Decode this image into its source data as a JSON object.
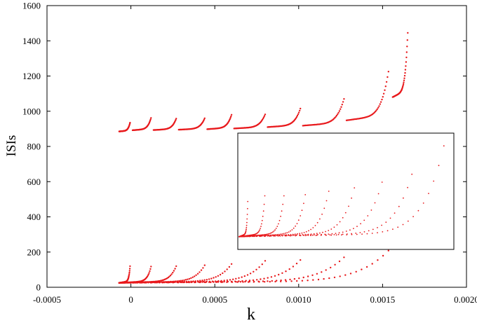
{
  "chart_data": {
    "type": "scatter",
    "title": "",
    "xlabel": "k",
    "ylabel": "ISIs",
    "xlim": [
      -0.0005,
      0.002
    ],
    "ylim": [
      0,
      1600
    ],
    "x_ticks": [
      "-0.0005",
      "0",
      "0.0005",
      "0.0010",
      "0.0015",
      "0.0020"
    ],
    "x_tick_values": [
      -0.0005,
      0,
      0.0005,
      0.001,
      0.0015,
      0.002
    ],
    "y_ticks": [
      "0",
      "200",
      "400",
      "600",
      "800",
      "1000",
      "1200",
      "1400",
      "1600"
    ],
    "y_tick_values": [
      0,
      200,
      400,
      600,
      800,
      1000,
      1200,
      1400,
      1600
    ],
    "grid": false,
    "marker_color": "#e8191c",
    "upper_branch": {
      "baseline_start": [
        -7e-05,
        885
      ],
      "peaks": [
        [
          -5e-06,
          935
        ],
        [
          0.00012,
          962
        ],
        [
          0.00027,
          958
        ],
        [
          0.00044,
          960
        ],
        [
          0.0006,
          980
        ],
        [
          0.0008,
          982
        ],
        [
          0.00101,
          1015
        ],
        [
          0.00127,
          1070
        ],
        [
          0.001535,
          1225
        ],
        [
          0.00165,
          1445
        ]
      ],
      "troughs": [
        [
          1e-05,
          892
        ],
        [
          0.000135,
          893
        ],
        [
          0.000285,
          895
        ],
        [
          0.000455,
          898
        ],
        [
          0.000615,
          902
        ],
        [
          0.000815,
          910
        ],
        [
          0.001025,
          918
        ],
        [
          0.001285,
          948
        ],
        [
          0.00156,
          1080
        ]
      ]
    },
    "lower_branch": {
      "baseline_start": [
        -7e-05,
        25
      ],
      "peaks": [
        [
          -5e-06,
          110
        ],
        [
          0.00012,
          108
        ],
        [
          0.00027,
          110
        ],
        [
          0.00044,
          115
        ],
        [
          0.0006,
          122
        ],
        [
          0.0008,
          140
        ],
        [
          0.00101,
          145
        ],
        [
          0.00127,
          160
        ],
        [
          0.001535,
          198
        ]
      ],
      "right_end": [
        0.001535,
        50
      ]
    }
  },
  "colors": {
    "marker": "#e8191c",
    "axis": "#000000",
    "inset_border": "#000000"
  }
}
